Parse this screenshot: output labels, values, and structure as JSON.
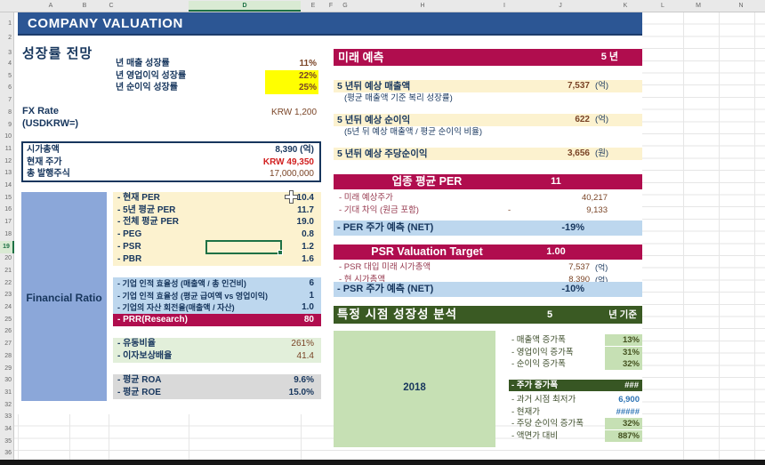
{
  "colors": {
    "title_bar_blue": "#2c5694",
    "crimson_header": "#b00d4e",
    "yellow_highlight": "#ffff00",
    "cream_fill": "#fcf2cf",
    "blue_block": "#8ba7d9",
    "light_blue_row": "#bdd7ee",
    "light_green_row": "#e2efda",
    "gray_row": "#d9d9d9",
    "dark_green_header": "#3a5a23",
    "green_block": "#c6e0b4",
    "navy_text": "#17365d",
    "maroon_value": "#7a4426",
    "red_value": "#d12020",
    "blue_value": "#2e74b5",
    "selection_green": "#1e7145"
  },
  "chrome": {
    "column_letters": [
      "A",
      "B",
      "C",
      "D",
      "E",
      "F",
      "G",
      "H",
      "I",
      "J",
      "K",
      "L",
      "M",
      "N"
    ],
    "row_numbers": [
      "1",
      "2",
      "3",
      "4",
      "5",
      "6",
      "7",
      "8",
      "9",
      "10",
      "11",
      "12",
      "13",
      "14",
      "15",
      "16",
      "17",
      "18",
      "19",
      "20",
      "21",
      "22",
      "23",
      "24",
      "25",
      "26",
      "27",
      "28",
      "29",
      "30",
      "31",
      "32",
      "33",
      "34",
      "35",
      "36"
    ],
    "selected_column": "D",
    "selected_row": "19"
  },
  "title": "COMPANY VALUATION",
  "left": {
    "growth_section": {
      "title": "성장률 전망",
      "rows": [
        {
          "label": "년 매출 성장률",
          "value": "11%",
          "highlight": false
        },
        {
          "label": "년 영업이익 성장률",
          "value": "22%",
          "highlight": true
        },
        {
          "label": "년 순이익 성장률",
          "value": "25%",
          "highlight": true
        }
      ]
    },
    "fx": {
      "label1": "FX Rate",
      "label2": "(USDKRW=)",
      "value": "KRW 1,200"
    },
    "market_box": {
      "rows": [
        {
          "label": "시가총액",
          "value": "8,390 (억)",
          "style": "navy"
        },
        {
          "label": "현재 주가",
          "value": "KRW 49,350",
          "style": "red"
        },
        {
          "label": "총 발행주식",
          "value": "17,000,000",
          "style": "maroon"
        }
      ]
    },
    "financial_ratio": {
      "label": "Financial Ratio",
      "per_rows": [
        {
          "label": "- 현재 PER",
          "value": "10.4"
        },
        {
          "label": "- 5년 평균 PER",
          "value": "11.7"
        },
        {
          "label": "- 전체 평균 PER",
          "value": "19.0"
        },
        {
          "label": "- PEG",
          "value": "0.8"
        },
        {
          "label": "- PSR",
          "value": "1.2"
        },
        {
          "label": "- PBR",
          "value": "1.6"
        }
      ],
      "efficiency_rows": [
        {
          "label": "- 기업 인적 효율성 (매출액 / 총 인건비)",
          "value": "6"
        },
        {
          "label": "- 기업 인적 효율성 (평균 급여액 vs 영업이익)",
          "value": "1"
        },
        {
          "label": "- 기업의 자산 회전율(매출액 / 자산)",
          "value": "1.0"
        }
      ],
      "prr_row": {
        "label": "- PRR(Research)",
        "value": "80"
      },
      "liquidity_rows": [
        {
          "label": "- 유동비율",
          "value": "261%"
        },
        {
          "label": "- 이자보상배율",
          "value": "41.4"
        }
      ],
      "return_rows": [
        {
          "label": "- 평균 ROA",
          "value": "9.6%"
        },
        {
          "label": "- 평균 ROE",
          "value": "15.0%"
        }
      ]
    }
  },
  "right": {
    "future_header": {
      "title": "미래 예측",
      "period": "5 년"
    },
    "forecast_rows": [
      {
        "label": "5 년뒤 예상 매출액",
        "value": "7,537",
        "unit": "(억)",
        "note": "(평균 매출액 기준 복리 성장률)"
      },
      {
        "label": "5 년뒤 예상 순이익",
        "value": "622",
        "unit": "(억)",
        "note": "(5년 뒤 예상 매출액 / 평균 순이익 비율)"
      },
      {
        "label": "5 년뒤 예상 주당순이익",
        "value": "3,656",
        "unit": "(원)",
        "note": ""
      }
    ],
    "per_section": {
      "header": "업종 평균 PER",
      "header_value": "11",
      "rows": [
        {
          "label": "- 미래 예상주가",
          "mid": "",
          "value": "40,217"
        },
        {
          "label": "- 기대 차익 (원금 포함)",
          "mid": "-",
          "value": "9,133"
        }
      ],
      "result_label": "- PER 주가 예측 (NET)",
      "result_value": "-19%"
    },
    "psr_section": {
      "header": "PSR Valuation Target",
      "header_value": "1.00",
      "rows": [
        {
          "label": "- PSR 대입 미래 시가총액",
          "value": "7,537",
          "unit": "(억)"
        },
        {
          "label": "- 현 시가총액",
          "value": "8,390",
          "unit": "(억)"
        }
      ],
      "result_label": "- PSR 주가 예측 (NET)",
      "result_value": "-10%"
    },
    "growth_analysis": {
      "header": "특정 시점 성장성 분석",
      "header_value": "5",
      "header_unit": "년 기준",
      "year": "2018",
      "growth_rows": [
        {
          "label": "- 매출액 증가폭",
          "value": "13%"
        },
        {
          "label": "- 영업이익 증가폭",
          "value": "31%"
        },
        {
          "label": "- 순이익 증가폭",
          "value": "32%"
        }
      ],
      "price_header": {
        "label": "- 주가 증가폭",
        "value": "###"
      },
      "price_rows": [
        {
          "label": "- 과거 시점 최저가",
          "value": "6,900",
          "style": "blue"
        },
        {
          "label": "- 현재가",
          "value": "#####",
          "style": "blue"
        },
        {
          "label": "- 주당 순이익 증가폭",
          "value": "32%",
          "style": "green"
        },
        {
          "label": "- 액면가 대비",
          "value": "887%",
          "style": "green"
        }
      ]
    }
  }
}
